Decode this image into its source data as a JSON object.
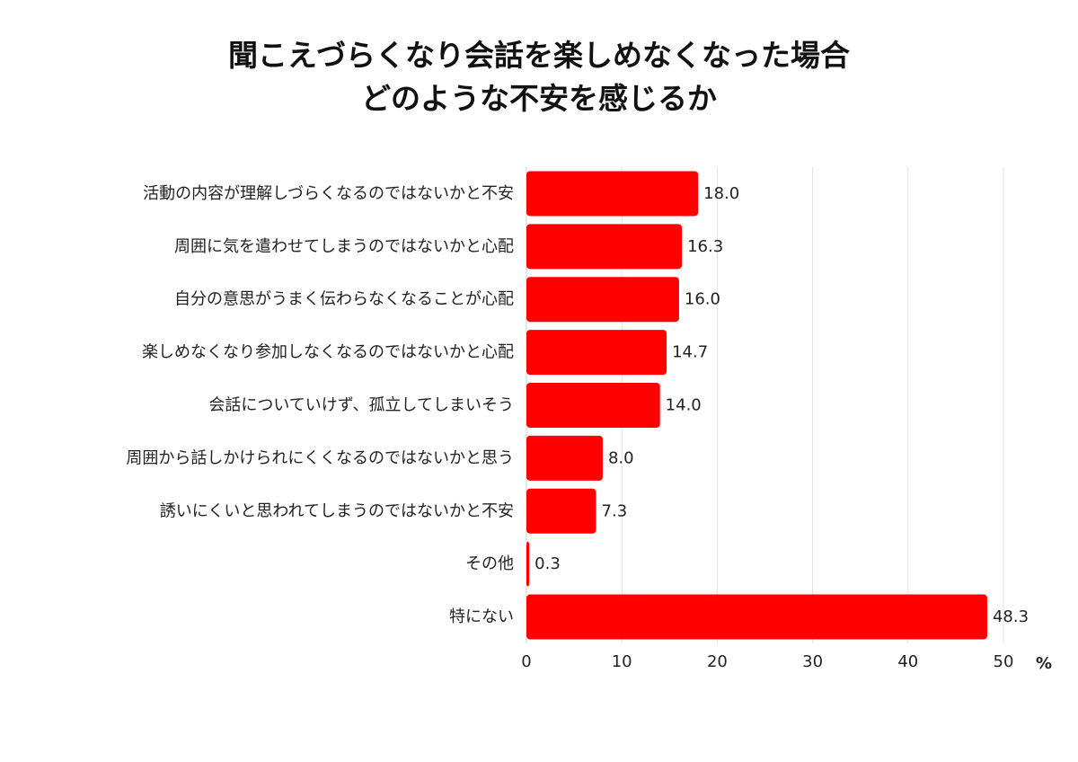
{
  "chart_data": {
    "type": "bar",
    "orientation": "horizontal",
    "title_lines": [
      "聞こえづらくなり会話を楽しめなくなった場合",
      "どのような不安を感じるか"
    ],
    "categories": [
      "活動の内容が理解しづらくなるのではないかと不安",
      "周囲に気を遣わせてしまうのではないかと心配",
      "自分の意思がうまく伝わらなくなることが心配",
      "楽しめなくなり参加しなくなるのではないかと心配",
      "会話についていけず、孤立してしまいそう",
      "周囲から話しかけられにくくなるのではないかと思う",
      "誘いにくいと思われてしまうのではないかと不安",
      "その他",
      "特にない"
    ],
    "values": [
      18.0,
      16.3,
      16.0,
      14.7,
      14.0,
      8.0,
      7.3,
      0.3,
      48.3
    ],
    "value_labels": [
      "18.0",
      "16.3",
      "16.0",
      "14.7",
      "14.0",
      "8.0",
      "7.3",
      "0.3",
      "48.3"
    ],
    "xlim": [
      0,
      50
    ],
    "xticks": [
      "0",
      "10",
      "20",
      "30",
      "40",
      "50"
    ],
    "xunit": "%",
    "grid": true,
    "bar_color": "#ff0000",
    "grid_color": "#e2e2e2"
  }
}
